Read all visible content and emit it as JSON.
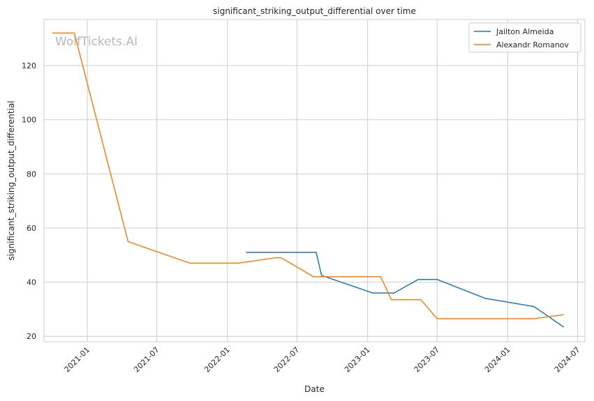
{
  "chart_data": {
    "type": "line",
    "title": "significant_striking_output_differential over time",
    "xlabel": "Date",
    "ylabel": "significant_striking_output_differential",
    "watermark": "WolfTickets.AI",
    "x_axis_type": "date",
    "xlim": [
      "2020-09-10",
      "2024-07-20"
    ],
    "ylim": [
      18,
      137
    ],
    "x_ticks": [
      "2021-01",
      "2021-07",
      "2022-01",
      "2022-07",
      "2023-01",
      "2023-07",
      "2024-01",
      "2024-07"
    ],
    "y_ticks": [
      20,
      40,
      60,
      80,
      100,
      120
    ],
    "grid": true,
    "legend_position": "top-right",
    "series": [
      {
        "name": "Jailton Almeida",
        "color": "#1f77b4",
        "x": [
          "2022-02-19",
          "2022-05-14",
          "2022-08-20",
          "2022-09-03",
          "2023-01-14",
          "2023-03-11",
          "2023-05-13",
          "2023-07-01",
          "2023-11-04",
          "2024-03-09",
          "2024-05-25"
        ],
        "y": [
          51,
          51,
          51,
          42.5,
          36,
          36,
          41,
          41,
          34,
          31,
          23.5
        ]
      },
      {
        "name": "Alexandr Romanov",
        "color": "#ff7f0e",
        "x": [
          "2020-10-03",
          "2020-11-28",
          "2021-04-17",
          "2021-09-25",
          "2022-01-29",
          "2022-05-07",
          "2022-05-21",
          "2022-08-13",
          "2022-09-17",
          "2023-02-04",
          "2023-03-04",
          "2023-05-20",
          "2023-07-01",
          "2024-03-09",
          "2024-05-25"
        ],
        "y": [
          132,
          132,
          55,
          47,
          47,
          49,
          49,
          42,
          42,
          42,
          33.5,
          33.5,
          26.5,
          26.5,
          28
        ]
      }
    ]
  }
}
